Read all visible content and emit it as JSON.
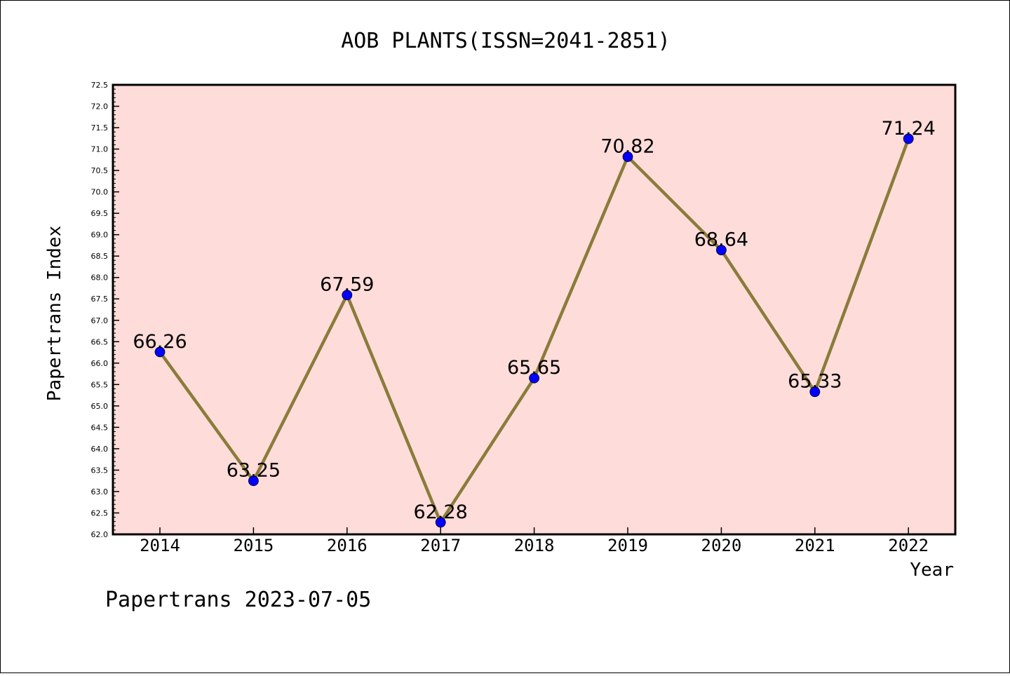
{
  "chart_data": {
    "type": "line",
    "title": "AOB PLANTS(ISSN=2041-2851)",
    "xlabel": "Year",
    "ylabel": "Papertrans Index",
    "categories": [
      "2014",
      "2015",
      "2016",
      "2017",
      "2018",
      "2019",
      "2020",
      "2021",
      "2022"
    ],
    "series": [
      {
        "values": [
          66.26,
          63.25,
          67.59,
          62.28,
          65.65,
          70.82,
          68.64,
          65.33,
          71.24
        ],
        "labels": [
          "66.26",
          "63.25",
          "67.59",
          "62.28",
          "65.65",
          "70.82",
          "68.64",
          "65.33",
          "71.24"
        ]
      }
    ],
    "ylim": [
      62.0,
      72.5
    ],
    "yticks": [
      "62.0",
      "62.5",
      "63.0",
      "63.5",
      "64.0",
      "64.5",
      "65.0",
      "65.5",
      "66.0",
      "66.5",
      "67.0",
      "67.5",
      "68.0",
      "68.5",
      "69.0",
      "69.5",
      "70.0",
      "70.5",
      "71.0",
      "71.5",
      "72.0",
      "72.5"
    ],
    "grid": false,
    "colors": {
      "plot_background": "#fddcda",
      "line": "#8b7b3a",
      "marker": "#0000ff"
    }
  },
  "footer": "Papertrans 2023-07-05"
}
